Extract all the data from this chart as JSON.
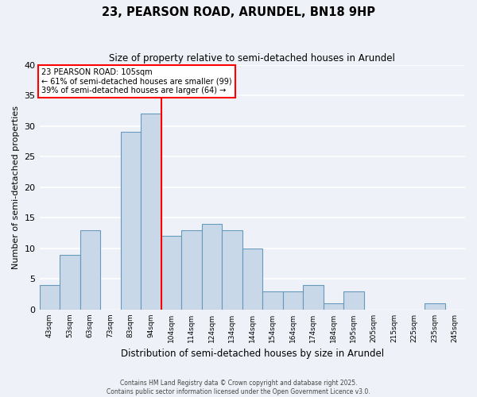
{
  "title": "23, PEARSON ROAD, ARUNDEL, BN18 9HP",
  "subtitle": "Size of property relative to semi-detached houses in Arundel",
  "xlabel": "Distribution of semi-detached houses by size in Arundel",
  "ylabel": "Number of semi-detached properties",
  "bin_labels": [
    "43sqm",
    "53sqm",
    "63sqm",
    "73sqm",
    "83sqm",
    "94sqm",
    "104sqm",
    "114sqm",
    "124sqm",
    "134sqm",
    "144sqm",
    "154sqm",
    "164sqm",
    "174sqm",
    "184sqm",
    "195sqm",
    "205sqm",
    "215sqm",
    "225sqm",
    "235sqm",
    "245sqm"
  ],
  "bar_heights": [
    4,
    9,
    13,
    0,
    29,
    32,
    12,
    13,
    14,
    13,
    10,
    3,
    3,
    4,
    1,
    3,
    0,
    0,
    0,
    1,
    0
  ],
  "property_bar_index": 6,
  "bar_color": "#c8d8e8",
  "bar_edge_color": "#6699bb",
  "annotation_text": "23 PEARSON ROAD: 105sqm\n← 61% of semi-detached houses are smaller (99)\n39% of semi-detached houses are larger (64) →",
  "ylim": [
    0,
    40
  ],
  "yticks": [
    0,
    5,
    10,
    15,
    20,
    25,
    30,
    35,
    40
  ],
  "bg_color": "#eef2f8",
  "grid_color": "#ffffff",
  "footer_line1": "Contains HM Land Registry data © Crown copyright and database right 2025.",
  "footer_line2": "Contains public sector information licensed under the Open Government Licence v3.0."
}
